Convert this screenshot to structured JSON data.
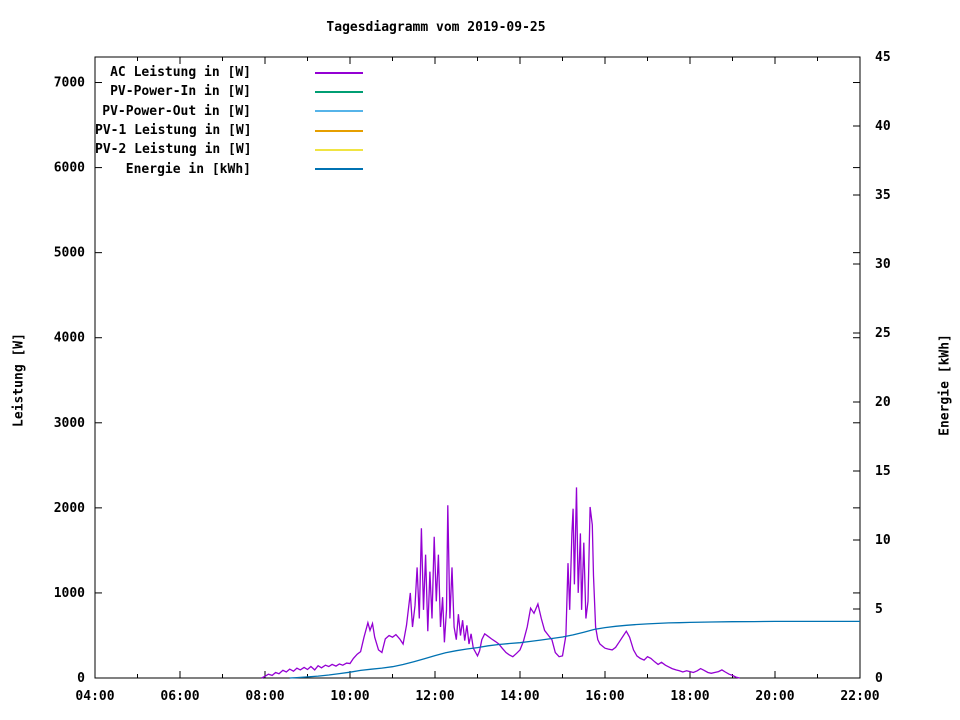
{
  "title": "Tagesdiagramm vom 2019-09-25",
  "colors": {
    "background": "#ffffff",
    "axis": "#000000",
    "text": "#000000"
  },
  "chart_data": {
    "type": "line",
    "title": "Tagesdiagramm vom 2019-09-25",
    "grid": false,
    "legend_position": "top-left-inside",
    "x_axis": {
      "min": 4,
      "max": 22,
      "unit": "time",
      "major_ticks": [
        {
          "t": 4,
          "label": "04:00"
        },
        {
          "t": 6,
          "label": "06:00"
        },
        {
          "t": 8,
          "label": "08:00"
        },
        {
          "t": 10,
          "label": "10:00"
        },
        {
          "t": 12,
          "label": "12:00"
        },
        {
          "t": 14,
          "label": "14:00"
        },
        {
          "t": 16,
          "label": "16:00"
        },
        {
          "t": 18,
          "label": "18:00"
        },
        {
          "t": 20,
          "label": "20:00"
        },
        {
          "t": 22,
          "label": "22:00"
        }
      ],
      "minor_ticks": [
        5,
        7,
        9,
        11,
        13,
        15,
        17,
        19,
        21
      ]
    },
    "y_left": {
      "label": "Leistung [W]",
      "min": 0,
      "max": 7300,
      "ticks": [
        {
          "v": 0,
          "label": "0"
        },
        {
          "v": 1000,
          "label": "1000"
        },
        {
          "v": 2000,
          "label": "2000"
        },
        {
          "v": 3000,
          "label": "3000"
        },
        {
          "v": 4000,
          "label": "4000"
        },
        {
          "v": 5000,
          "label": "5000"
        },
        {
          "v": 6000,
          "label": "6000"
        },
        {
          "v": 7000,
          "label": "7000"
        }
      ]
    },
    "y_right": {
      "label": "Energie [kWh]",
      "min": 0,
      "max": 45,
      "ticks": [
        {
          "v": 0,
          "label": "0"
        },
        {
          "v": 5,
          "label": "5"
        },
        {
          "v": 10,
          "label": "10"
        },
        {
          "v": 15,
          "label": "15"
        },
        {
          "v": 20,
          "label": "20"
        },
        {
          "v": 25,
          "label": "25"
        },
        {
          "v": 30,
          "label": "30"
        },
        {
          "v": 35,
          "label": "35"
        },
        {
          "v": 40,
          "label": "40"
        },
        {
          "v": 45,
          "label": "45"
        }
      ]
    },
    "series": [
      {
        "label": "AC Leistung in [W]",
        "color": "#9400d3",
        "axis": "left",
        "points": [
          [
            7.92,
            0
          ],
          [
            8.0,
            20
          ],
          [
            8.08,
            45
          ],
          [
            8.17,
            30
          ],
          [
            8.25,
            65
          ],
          [
            8.33,
            50
          ],
          [
            8.42,
            90
          ],
          [
            8.5,
            70
          ],
          [
            8.58,
            105
          ],
          [
            8.67,
            80
          ],
          [
            8.75,
            115
          ],
          [
            8.83,
            95
          ],
          [
            8.92,
            125
          ],
          [
            9.0,
            100
          ],
          [
            9.08,
            135
          ],
          [
            9.17,
            95
          ],
          [
            9.25,
            145
          ],
          [
            9.33,
            120
          ],
          [
            9.42,
            150
          ],
          [
            9.5,
            135
          ],
          [
            9.58,
            160
          ],
          [
            9.67,
            140
          ],
          [
            9.75,
            165
          ],
          [
            9.83,
            150
          ],
          [
            9.92,
            175
          ],
          [
            10.0,
            170
          ],
          [
            10.08,
            230
          ],
          [
            10.17,
            280
          ],
          [
            10.25,
            310
          ],
          [
            10.33,
            480
          ],
          [
            10.42,
            650
          ],
          [
            10.47,
            560
          ],
          [
            10.53,
            640
          ],
          [
            10.58,
            480
          ],
          [
            10.67,
            330
          ],
          [
            10.75,
            300
          ],
          [
            10.83,
            460
          ],
          [
            10.92,
            500
          ],
          [
            11.0,
            480
          ],
          [
            11.08,
            510
          ],
          [
            11.17,
            460
          ],
          [
            11.25,
            400
          ],
          [
            11.33,
            620
          ],
          [
            11.42,
            1000
          ],
          [
            11.47,
            600
          ],
          [
            11.53,
            850
          ],
          [
            11.58,
            1300
          ],
          [
            11.63,
            700
          ],
          [
            11.68,
            1760
          ],
          [
            11.73,
            800
          ],
          [
            11.78,
            1450
          ],
          [
            11.83,
            550
          ],
          [
            11.88,
            1250
          ],
          [
            11.93,
            700
          ],
          [
            11.98,
            1660
          ],
          [
            12.03,
            900
          ],
          [
            12.08,
            1450
          ],
          [
            12.13,
            600
          ],
          [
            12.18,
            950
          ],
          [
            12.22,
            420
          ],
          [
            12.27,
            800
          ],
          [
            12.3,
            2030
          ],
          [
            12.35,
            700
          ],
          [
            12.4,
            1300
          ],
          [
            12.45,
            600
          ],
          [
            12.5,
            450
          ],
          [
            12.55,
            750
          ],
          [
            12.6,
            500
          ],
          [
            12.65,
            680
          ],
          [
            12.7,
            440
          ],
          [
            12.75,
            620
          ],
          [
            12.8,
            400
          ],
          [
            12.85,
            520
          ],
          [
            12.9,
            350
          ],
          [
            13.0,
            260
          ],
          [
            13.05,
            320
          ],
          [
            13.1,
            450
          ],
          [
            13.17,
            520
          ],
          [
            13.25,
            490
          ],
          [
            13.33,
            460
          ],
          [
            13.42,
            430
          ],
          [
            13.5,
            400
          ],
          [
            13.58,
            350
          ],
          [
            13.67,
            300
          ],
          [
            13.75,
            270
          ],
          [
            13.83,
            250
          ],
          [
            13.92,
            290
          ],
          [
            14.0,
            330
          ],
          [
            14.08,
            430
          ],
          [
            14.17,
            600
          ],
          [
            14.25,
            820
          ],
          [
            14.33,
            760
          ],
          [
            14.42,
            870
          ],
          [
            14.5,
            700
          ],
          [
            14.58,
            560
          ],
          [
            14.67,
            500
          ],
          [
            14.75,
            450
          ],
          [
            14.83,
            300
          ],
          [
            14.92,
            250
          ],
          [
            15.0,
            260
          ],
          [
            15.08,
            500
          ],
          [
            15.13,
            1350
          ],
          [
            15.17,
            800
          ],
          [
            15.22,
            1700
          ],
          [
            15.25,
            1990
          ],
          [
            15.28,
            1100
          ],
          [
            15.33,
            2240
          ],
          [
            15.37,
            1000
          ],
          [
            15.42,
            1700
          ],
          [
            15.45,
            800
          ],
          [
            15.5,
            1590
          ],
          [
            15.55,
            700
          ],
          [
            15.6,
            900
          ],
          [
            15.65,
            2010
          ],
          [
            15.7,
            1800
          ],
          [
            15.73,
            1200
          ],
          [
            15.78,
            600
          ],
          [
            15.83,
            450
          ],
          [
            15.88,
            400
          ],
          [
            15.95,
            370
          ],
          [
            16.0,
            350
          ],
          [
            16.08,
            340
          ],
          [
            16.17,
            330
          ],
          [
            16.25,
            360
          ],
          [
            16.33,
            420
          ],
          [
            16.5,
            550
          ],
          [
            16.58,
            480
          ],
          [
            16.67,
            330
          ],
          [
            16.75,
            260
          ],
          [
            16.83,
            230
          ],
          [
            16.92,
            210
          ],
          [
            17.0,
            250
          ],
          [
            17.08,
            230
          ],
          [
            17.17,
            190
          ],
          [
            17.25,
            160
          ],
          [
            17.33,
            185
          ],
          [
            17.42,
            150
          ],
          [
            17.5,
            130
          ],
          [
            17.58,
            110
          ],
          [
            17.67,
            95
          ],
          [
            17.75,
            85
          ],
          [
            17.83,
            70
          ],
          [
            17.92,
            85
          ],
          [
            18.0,
            75
          ],
          [
            18.08,
            65
          ],
          [
            18.17,
            85
          ],
          [
            18.25,
            110
          ],
          [
            18.33,
            90
          ],
          [
            18.42,
            65
          ],
          [
            18.5,
            55
          ],
          [
            18.58,
            65
          ],
          [
            18.67,
            75
          ],
          [
            18.75,
            95
          ],
          [
            18.83,
            70
          ],
          [
            18.92,
            45
          ],
          [
            19.0,
            30
          ],
          [
            19.08,
            10
          ],
          [
            19.17,
            0
          ]
        ]
      },
      {
        "label": "PV-Power-In in [W]",
        "color": "#009e73",
        "axis": "left",
        "points": []
      },
      {
        "label": "PV-Power-Out in [W]",
        "color": "#56b4e9",
        "axis": "left",
        "points": []
      },
      {
        "label": "PV-1 Leistung in [W]",
        "color": "#e69f00",
        "axis": "left",
        "points": []
      },
      {
        "label": "PV-2 Leistung in [W]",
        "color": "#f0e442",
        "axis": "left",
        "points": []
      },
      {
        "label": "Energie in [kWh]",
        "color": "#0072b2",
        "axis": "right",
        "points": [
          [
            8.58,
            0
          ],
          [
            8.75,
            0.03
          ],
          [
            9.0,
            0.08
          ],
          [
            9.25,
            0.14
          ],
          [
            9.5,
            0.22
          ],
          [
            9.75,
            0.32
          ],
          [
            10.0,
            0.42
          ],
          [
            10.25,
            0.55
          ],
          [
            10.5,
            0.64
          ],
          [
            10.75,
            0.72
          ],
          [
            11.0,
            0.82
          ],
          [
            11.25,
            0.98
          ],
          [
            11.5,
            1.18
          ],
          [
            11.75,
            1.4
          ],
          [
            12.0,
            1.62
          ],
          [
            12.25,
            1.83
          ],
          [
            12.5,
            1.98
          ],
          [
            12.75,
            2.1
          ],
          [
            13.0,
            2.2
          ],
          [
            13.25,
            2.33
          ],
          [
            13.5,
            2.43
          ],
          [
            13.75,
            2.5
          ],
          [
            14.0,
            2.56
          ],
          [
            14.25,
            2.65
          ],
          [
            14.5,
            2.75
          ],
          [
            14.75,
            2.86
          ],
          [
            15.0,
            2.97
          ],
          [
            15.25,
            3.12
          ],
          [
            15.5,
            3.32
          ],
          [
            15.75,
            3.52
          ],
          [
            16.0,
            3.65
          ],
          [
            16.25,
            3.75
          ],
          [
            16.5,
            3.82
          ],
          [
            16.75,
            3.88
          ],
          [
            17.0,
            3.92
          ],
          [
            17.25,
            3.96
          ],
          [
            17.5,
            3.99
          ],
          [
            17.75,
            4.01
          ],
          [
            18.0,
            4.03
          ],
          [
            18.5,
            4.06
          ],
          [
            19.0,
            4.08
          ],
          [
            19.5,
            4.09
          ],
          [
            20.0,
            4.1
          ],
          [
            21.0,
            4.1
          ],
          [
            22.0,
            4.1
          ]
        ]
      }
    ]
  }
}
